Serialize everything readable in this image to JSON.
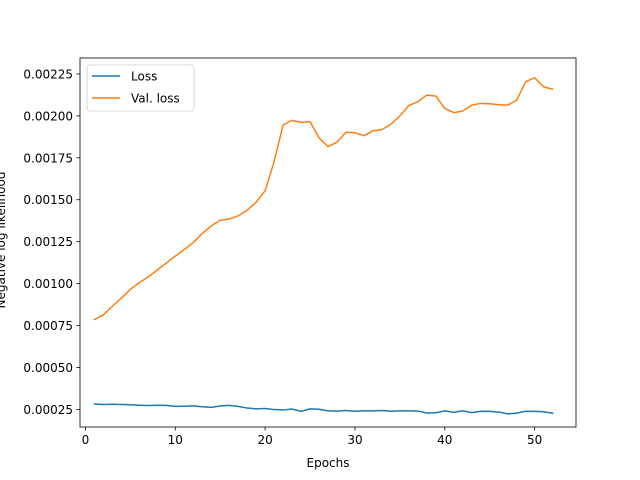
{
  "chart_data": {
    "type": "line",
    "title": "",
    "xlabel": "Epochs",
    "ylabel": "Negative log likelihood",
    "xlim": [
      -0.6,
      54.6
    ],
    "ylim": [
      0.000145,
      0.002345
    ],
    "xticks": [
      0,
      10,
      20,
      30,
      40,
      50
    ],
    "yticks": [
      0.00025,
      0.0005,
      0.00075,
      0.001,
      0.00125,
      0.0015,
      0.00175,
      0.002,
      0.00225
    ],
    "ytick_labels": [
      "0.00025",
      "0.00050",
      "0.00075",
      "0.00100",
      "0.00125",
      "0.00150",
      "0.00175",
      "0.00200",
      "0.00225"
    ],
    "legend_position": "upper-left",
    "grid": false,
    "x": [
      1,
      2,
      3,
      4,
      5,
      6,
      7,
      8,
      9,
      10,
      11,
      12,
      13,
      14,
      15,
      16,
      17,
      18,
      19,
      20,
      21,
      22,
      23,
      24,
      25,
      26,
      27,
      28,
      29,
      30,
      31,
      32,
      33,
      34,
      35,
      36,
      37,
      38,
      39,
      40,
      41,
      42,
      43,
      44,
      45,
      46,
      47,
      48,
      49,
      50,
      51,
      52
    ],
    "series": [
      {
        "name": "Loss",
        "color": "#1f77b4",
        "values": [
          0.000282,
          0.000279,
          0.000281,
          0.000279,
          0.000278,
          0.000275,
          0.000273,
          0.000275,
          0.000274,
          0.000268,
          0.000269,
          0.000271,
          0.000266,
          0.000262,
          0.00027,
          0.000274,
          0.000268,
          0.000258,
          0.000253,
          0.000255,
          0.000249,
          0.000246,
          0.000252,
          0.000238,
          0.000253,
          0.000251,
          0.000241,
          0.00024,
          0.000243,
          0.000239,
          0.000242,
          0.000241,
          0.000243,
          0.000239,
          0.000241,
          0.000241,
          0.00024,
          0.000228,
          0.00023,
          0.000241,
          0.000232,
          0.000242,
          0.000231,
          0.000239,
          0.000238,
          0.000234,
          0.000223,
          0.000228,
          0.000239,
          0.000238,
          0.000236,
          0.000227
        ]
      },
      {
        "name": "Val. loss",
        "color": "#ff7f0e",
        "values": [
          0.000786,
          0.000814,
          0.000865,
          0.000914,
          0.000965,
          0.001006,
          0.00104,
          0.001081,
          0.001122,
          0.001164,
          0.001203,
          0.001244,
          0.001299,
          0.001344,
          0.001377,
          0.001385,
          0.001404,
          0.001437,
          0.001485,
          0.001553,
          0.001727,
          0.001946,
          0.001973,
          0.001961,
          0.001966,
          0.001869,
          0.001817,
          0.001843,
          0.001902,
          0.001899,
          0.001882,
          0.001911,
          0.001918,
          0.00195,
          0.002,
          0.002062,
          0.002084,
          0.002124,
          0.002118,
          0.002044,
          0.002019,
          0.002029,
          0.002064,
          0.002074,
          0.002072,
          0.002066,
          0.002064,
          0.002094,
          0.002204,
          0.002227,
          0.002173,
          0.002159
        ]
      }
    ]
  }
}
